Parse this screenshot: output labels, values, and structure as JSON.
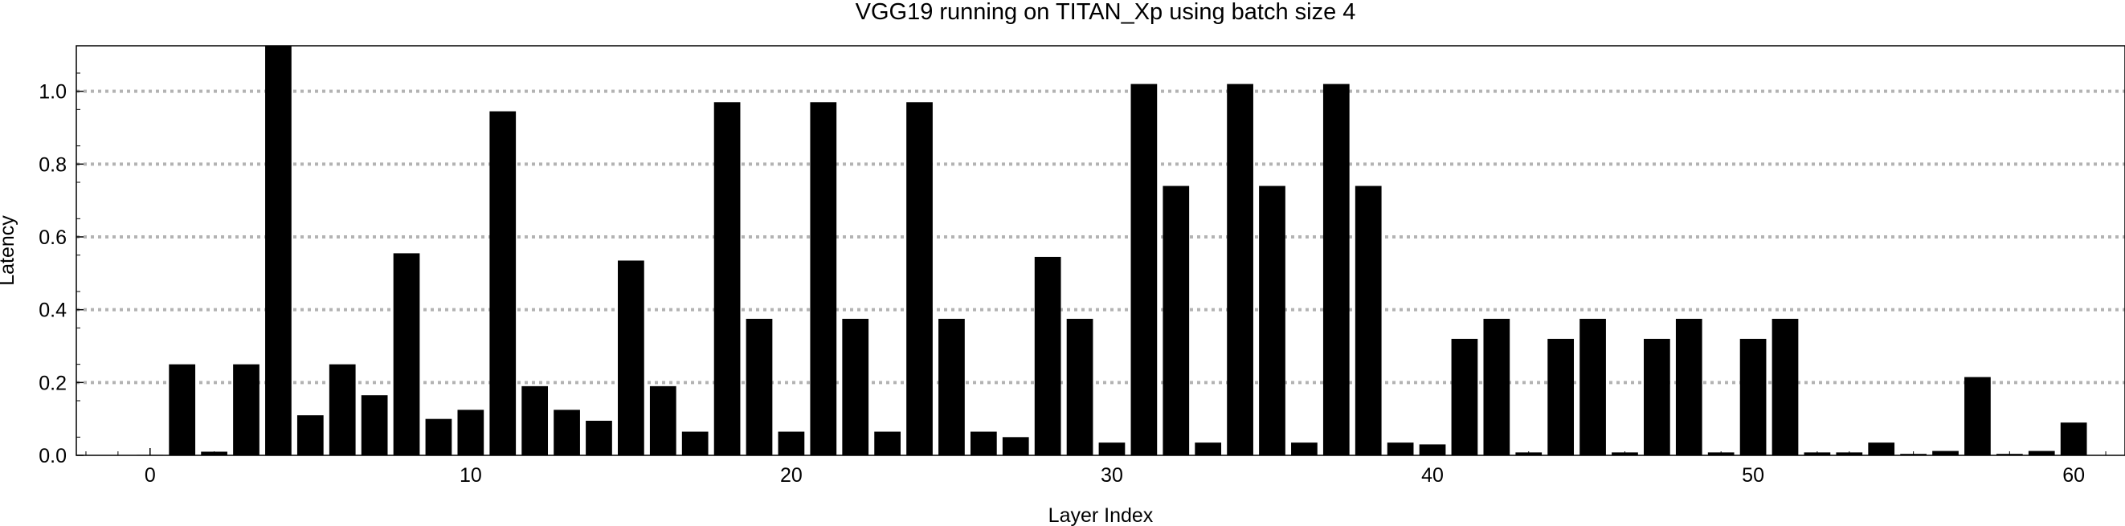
{
  "chart_data": {
    "type": "bar",
    "title": "VGG19 running on TITAN_Xp using batch size 4",
    "xlabel": "Layer Index",
    "ylabel": "Latency",
    "xlim": [
      -2.3,
      61.6
    ],
    "ylim": [
      0,
      1.125
    ],
    "xticks": [
      0,
      10,
      20,
      30,
      40,
      50,
      60
    ],
    "yticks": [
      0.0,
      0.2,
      0.4,
      0.6,
      0.8,
      1.0
    ],
    "ytick_labels": [
      "0.0",
      "0.2",
      "0.4",
      "0.6",
      "0.8",
      "1.0"
    ],
    "grid": "horizontal dotted",
    "bar_color": "#000000",
    "grid_color": "#b3b3b3",
    "x": [
      0,
      1,
      2,
      3,
      4,
      5,
      6,
      7,
      8,
      9,
      10,
      11,
      12,
      13,
      14,
      15,
      16,
      17,
      18,
      19,
      20,
      21,
      22,
      23,
      24,
      25,
      26,
      27,
      28,
      29,
      30,
      31,
      32,
      33,
      34,
      35,
      36,
      37,
      38,
      39,
      40,
      41,
      42,
      43,
      44,
      45,
      46,
      47,
      48,
      49,
      50,
      51,
      52,
      53,
      54,
      55,
      56,
      57,
      58,
      59,
      60
    ],
    "values": [
      0.001,
      0.25,
      0.01,
      0.25,
      1.13,
      0.11,
      0.25,
      0.165,
      0.555,
      0.1,
      0.125,
      0.945,
      0.19,
      0.125,
      0.095,
      0.535,
      0.19,
      0.065,
      0.97,
      0.375,
      0.065,
      0.97,
      0.375,
      0.065,
      0.97,
      0.375,
      0.065,
      0.05,
      0.545,
      0.375,
      0.035,
      1.02,
      0.74,
      0.035,
      1.02,
      0.74,
      0.035,
      1.02,
      0.74,
      0.035,
      0.03,
      0.32,
      0.375,
      0.008,
      0.32,
      0.375,
      0.008,
      0.32,
      0.375,
      0.008,
      0.32,
      0.375,
      0.008,
      0.008,
      0.035,
      0.004,
      0.012,
      0.215,
      0.004,
      0.012,
      0.09
    ]
  }
}
